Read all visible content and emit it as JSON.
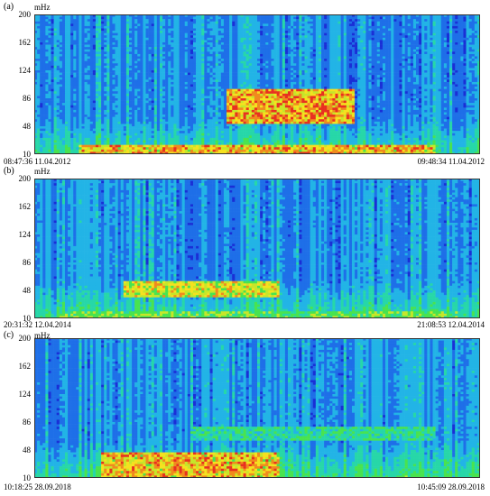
{
  "chart_data": [
    {
      "type": "heatmap",
      "panel_label": "(a)",
      "y_unit": "mHz",
      "y_ticks": [
        10,
        48,
        86,
        124,
        162,
        200
      ],
      "ylim": [
        10,
        200
      ],
      "start_time": "08:47:36 11.04.2012",
      "end_time": "09:48:34 11.04.2012",
      "colormap": [
        "#1a2fd6",
        "#1e6fe8",
        "#22b4e6",
        "#27d7a8",
        "#49e34f",
        "#c6e62a",
        "#f5e11f",
        "#f08a1e",
        "#e83020"
      ],
      "description_hotspots": [
        {
          "t": [
            0.43,
            0.72
          ],
          "f": [
            50,
            100
          ],
          "level": 0.95
        },
        {
          "t": [
            0.1,
            0.9
          ],
          "f": [
            10,
            22
          ],
          "level": 0.9
        }
      ]
    },
    {
      "type": "heatmap",
      "panel_label": "(b)",
      "y_unit": "mHz",
      "y_ticks": [
        10,
        48,
        86,
        124,
        162,
        200
      ],
      "ylim": [
        10,
        200
      ],
      "start_time": "20:31:32 12.04.2014",
      "end_time": "21:08:53 12.04.2014",
      "colormap": [
        "#1a2fd6",
        "#1e6fe8",
        "#22b4e6",
        "#27d7a8",
        "#49e34f",
        "#c6e62a",
        "#f5e11f",
        "#f08a1e",
        "#e83020"
      ],
      "description_hotspots": [
        {
          "t": [
            0.2,
            0.55
          ],
          "f": [
            38,
            60
          ],
          "level": 0.8
        },
        {
          "t": [
            0.05,
            0.95
          ],
          "f": [
            10,
            18
          ],
          "level": 0.6
        }
      ]
    },
    {
      "type": "heatmap",
      "panel_label": "(c)",
      "y_unit": "mHz",
      "y_ticks": [
        10,
        48,
        86,
        124,
        162,
        200
      ],
      "ylim": [
        10,
        200
      ],
      "start_time": "10:18:25 28.09.2018",
      "end_time": "10:45:09 28.09.2018",
      "colormap": [
        "#1a2fd6",
        "#1e6fe8",
        "#22b4e6",
        "#27d7a8",
        "#49e34f",
        "#c6e62a",
        "#f5e11f",
        "#f08a1e",
        "#e83020"
      ],
      "description_hotspots": [
        {
          "t": [
            0.15,
            0.55
          ],
          "f": [
            10,
            45
          ],
          "level": 0.9
        },
        {
          "t": [
            0.35,
            0.9
          ],
          "f": [
            60,
            80
          ],
          "level": 0.5
        }
      ]
    }
  ]
}
